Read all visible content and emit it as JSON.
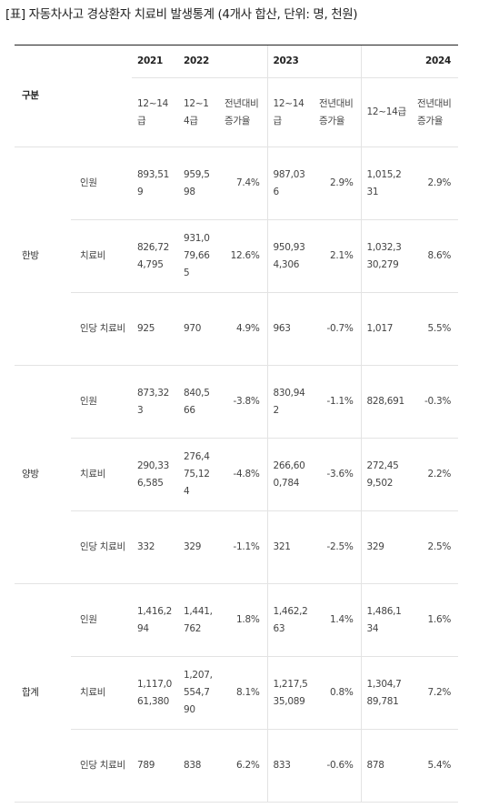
{
  "caption": "[표] 자동차사고 경상환자 치료비 발생통계 (4개사 합산, 단위: 명, 천원)",
  "header": {
    "category": "구분",
    "years": [
      "2021",
      "2022",
      "2023",
      "2024"
    ],
    "sub_grade": "12~14급",
    "sub_change": "전년대비 증가율"
  },
  "groups": [
    {
      "label": "한방",
      "rows": [
        {
          "item": "인원",
          "v2021": "893,519",
          "v2022": "959,598",
          "c2022": "7.4%",
          "v2023": "987,036",
          "c2023": "2.9%",
          "v2024": "1,015,231",
          "c2024": "2.9%"
        },
        {
          "item": "치료비",
          "v2021": "826,724,795",
          "v2022": "931,079,665",
          "c2022": "12.6%",
          "v2023": "950,934,306",
          "c2023": "2.1%",
          "v2024": "1,032,330,279",
          "c2024": "8.6%"
        },
        {
          "item": "인당 치료비",
          "v2021": "925",
          "v2022": "970",
          "c2022": "4.9%",
          "v2023": "963",
          "c2023": "-0.7%",
          "v2024": "1,017",
          "c2024": "5.5%"
        }
      ]
    },
    {
      "label": "양방",
      "rows": [
        {
          "item": "인원",
          "v2021": "873,323",
          "v2022": "840,566",
          "c2022": "-3.8%",
          "v2023": "830,942",
          "c2023": "-1.1%",
          "v2024": "828,691",
          "c2024": "-0.3%"
        },
        {
          "item": "치료비",
          "v2021": "290,336,585",
          "v2022": "276,475,124",
          "c2022": "-4.8%",
          "v2023": "266,600,784",
          "c2023": "-3.6%",
          "v2024": "272,459,502",
          "c2024": "2.2%"
        },
        {
          "item": "인당 치료비",
          "v2021": "332",
          "v2022": "329",
          "c2022": "-1.1%",
          "v2023": "321",
          "c2023": "-2.5%",
          "v2024": "329",
          "c2024": "2.5%"
        }
      ]
    },
    {
      "label": "합계",
      "rows": [
        {
          "item": "인원",
          "v2021": "1,416,294",
          "v2022": "1,441,762",
          "c2022": "1.8%",
          "v2023": "1,462,263",
          "c2023": "1.4%",
          "v2024": "1,486,134",
          "c2024": "1.6%"
        },
        {
          "item": "치료비",
          "v2021": "1,117,061,380",
          "v2022": "1,207,554,790",
          "c2022": "8.1%",
          "v2023": "1,217,535,089",
          "c2023": "0.8%",
          "v2024": "1,304,789,781",
          "c2024": "7.2%"
        },
        {
          "item": "인당 치료비",
          "v2021": "789",
          "v2022": "838",
          "c2022": "6.2%",
          "v2023": "833",
          "c2023": "-0.6%",
          "v2024": "878",
          "c2024": "5.4%"
        }
      ]
    }
  ]
}
